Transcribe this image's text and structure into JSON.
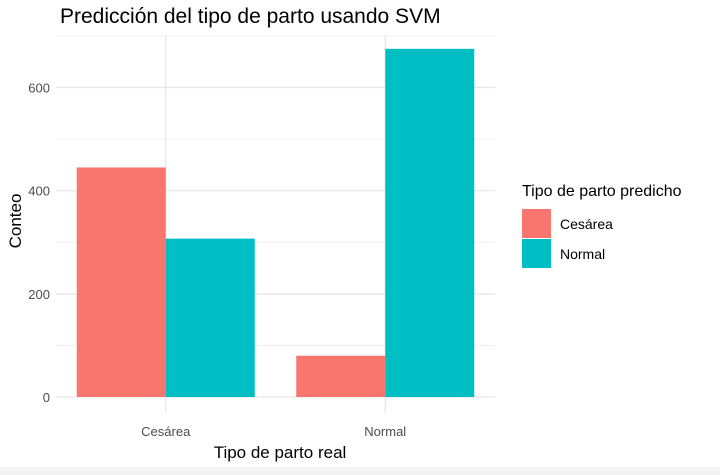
{
  "chart_data": {
    "type": "bar",
    "title": "Predicción del tipo de parto usando SVM",
    "xlabel": "Tipo de parto real",
    "ylabel": "Conteo",
    "categories": [
      "Cesárea",
      "Normal"
    ],
    "series": [
      {
        "name": "Cesárea",
        "values": [
          445,
          80
        ],
        "color": "#F8766D"
      },
      {
        "name": "Normal",
        "values": [
          307,
          675
        ],
        "color": "#00BFC4"
      }
    ],
    "ylim": [
      0,
      700
    ],
    "yticks": [
      0,
      200,
      400,
      600
    ],
    "grid": true,
    "legend": {
      "title": "Tipo de parto predicho",
      "position": "right"
    }
  }
}
